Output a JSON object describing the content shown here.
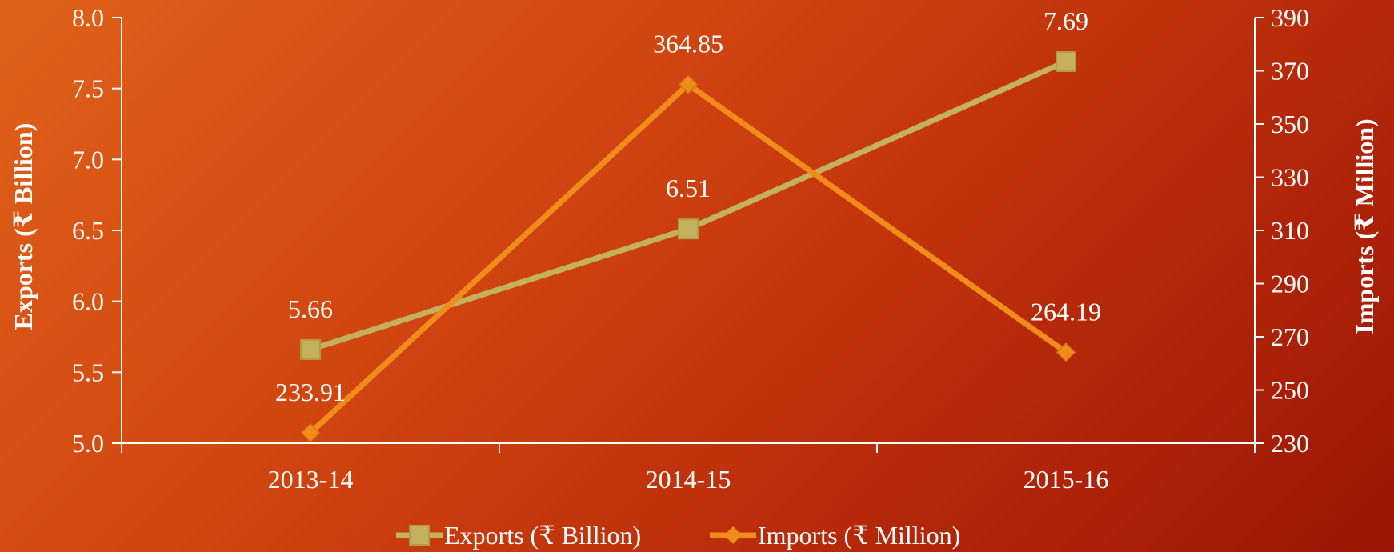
{
  "chart_data": {
    "type": "line",
    "title": "",
    "xlabel": "",
    "categories": [
      "2013-14",
      "2014-15",
      "2015-16"
    ],
    "y_left": {
      "label": "Exports (₹ Billion)",
      "range": [
        5.0,
        8.0
      ],
      "ticks": [
        "5.0",
        "5.5",
        "6.0",
        "6.5",
        "7.0",
        "7.5",
        "8.0"
      ]
    },
    "y_right": {
      "label": "Imports (₹ Million)",
      "range": [
        230,
        390
      ],
      "ticks": [
        "230",
        "250",
        "270",
        "290",
        "310",
        "330",
        "350",
        "370",
        "390"
      ]
    },
    "series": [
      {
        "name": "Exports (₹ Billion)",
        "axis": "left",
        "values": [
          5.66,
          6.51,
          7.69
        ],
        "labels": [
          "5.66",
          "6.51",
          "7.69"
        ],
        "color": "#c3b15e",
        "marker": "square"
      },
      {
        "name": "Imports (₹ Million)",
        "axis": "right",
        "values": [
          233.91,
          364.85,
          264.19
        ],
        "labels": [
          "233.91",
          "364.85",
          "264.19"
        ],
        "color": "#f08c1a",
        "marker": "diamond"
      }
    ],
    "grid": false,
    "legend": "bottom-center"
  }
}
